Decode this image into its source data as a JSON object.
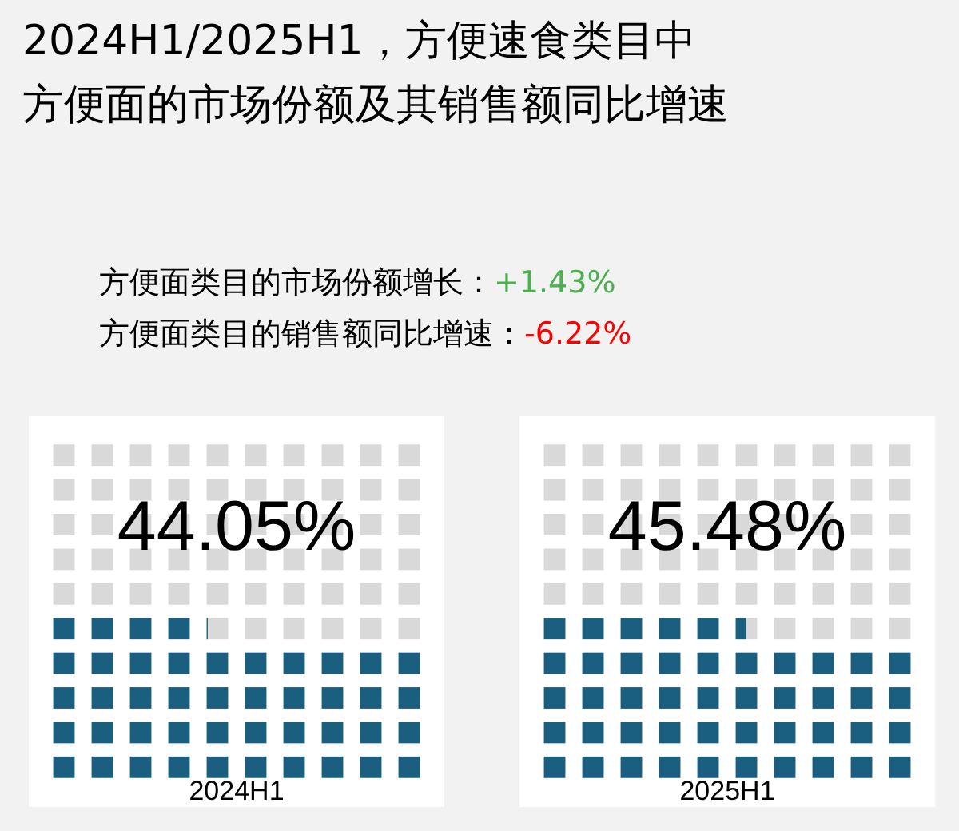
{
  "chart_data": {
    "type": "other",
    "title": "2024H1/2025H1，方便速食类目中",
    "subtitle": "方便面的市场份额及其销售额同比增速",
    "annotations": [
      "方便面类目的市场份额增长：+1.43%",
      "方便面类目的销售额同比增速：-6.22%"
    ],
    "categories": [
      "2024H1",
      "2025H1"
    ],
    "values": [
      44.05,
      45.48
    ],
    "value_labels": [
      "44.05%",
      "45.48%"
    ]
  }
}
